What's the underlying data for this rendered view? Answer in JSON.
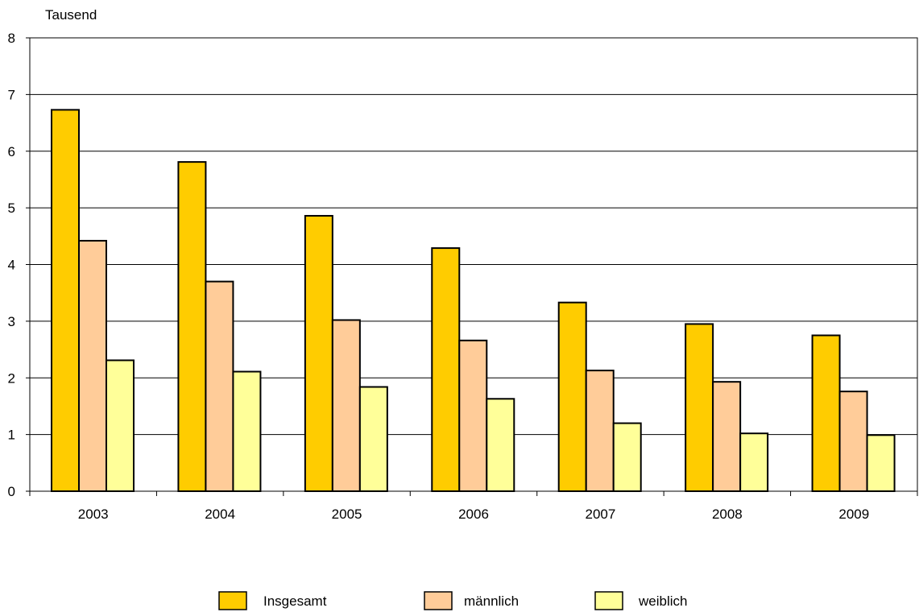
{
  "chart_data": {
    "type": "bar",
    "unit_label": "Tausend",
    "categories": [
      "2003",
      "2004",
      "2005",
      "2006",
      "2007",
      "2008",
      "2009"
    ],
    "series": [
      {
        "name": "Insgesamt",
        "color": "#FFCC00",
        "values": [
          6.73,
          5.81,
          4.86,
          4.29,
          3.33,
          2.95,
          2.75
        ]
      },
      {
        "name": "männlich",
        "color": "#FFCC99",
        "values": [
          4.42,
          3.7,
          3.02,
          2.66,
          2.13,
          1.93,
          1.76
        ]
      },
      {
        "name": "weiblich",
        "color": "#FFFF99",
        "values": [
          2.31,
          2.11,
          1.84,
          1.63,
          1.2,
          1.02,
          0.99
        ]
      }
    ],
    "y_ticks": [
      "0",
      "1",
      "2",
      "3",
      "4",
      "5",
      "6",
      "7",
      "8"
    ],
    "ylim": [
      0,
      8
    ],
    "grid": true,
    "legend_position": "bottom"
  }
}
